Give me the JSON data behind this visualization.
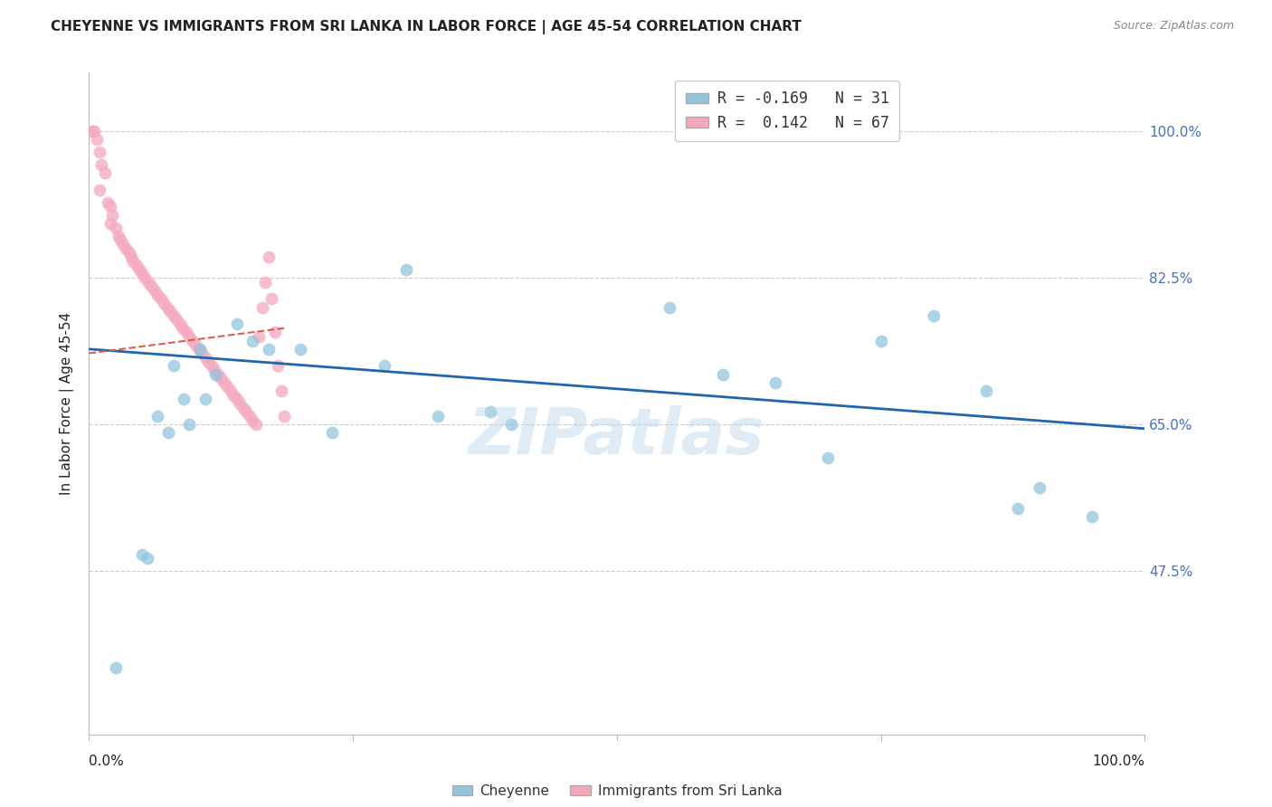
{
  "title": "CHEYENNE VS IMMIGRANTS FROM SRI LANKA IN LABOR FORCE | AGE 45-54 CORRELATION CHART",
  "source": "Source: ZipAtlas.com",
  "ylabel": "In Labor Force | Age 45-54",
  "legend_blue_R": "-0.169",
  "legend_blue_N": "31",
  "legend_pink_R": "0.142",
  "legend_pink_N": "67",
  "ytick_values": [
    47.5,
    65.0,
    82.5,
    100.0
  ],
  "xlim": [
    0,
    100
  ],
  "ylim": [
    28,
    107
  ],
  "blue_color": "#92C5DE",
  "pink_color": "#F4A9BB",
  "blue_line_color": "#2166AC",
  "pink_line_color": "#D6604D",
  "grid_color": "#CCCCCC",
  "watermark": "ZIPatlas",
  "blue_scatter_x": [
    2.5,
    5.5,
    6.5,
    8.0,
    9.0,
    10.5,
    12.0,
    14.0,
    15.5,
    17.0,
    20.0,
    23.0,
    28.0,
    33.0,
    38.0,
    40.0,
    55.0,
    60.0,
    65.0,
    70.0,
    75.0,
    80.0,
    85.0,
    88.0,
    90.0,
    95.0,
    5.0,
    7.5,
    9.5,
    11.0,
    30.0
  ],
  "blue_scatter_y": [
    36.0,
    49.0,
    66.0,
    72.0,
    68.0,
    74.0,
    71.0,
    77.0,
    75.0,
    74.0,
    74.0,
    64.0,
    72.0,
    66.0,
    66.5,
    65.0,
    79.0,
    71.0,
    70.0,
    61.0,
    75.0,
    78.0,
    69.0,
    55.0,
    57.5,
    54.0,
    49.5,
    64.0,
    65.0,
    68.0,
    83.5
  ],
  "pink_scatter_x": [
    0.3,
    0.5,
    0.7,
    1.0,
    1.2,
    1.5,
    1.8,
    2.0,
    2.2,
    2.5,
    2.8,
    3.0,
    3.2,
    3.5,
    3.8,
    4.0,
    4.2,
    4.5,
    4.8,
    5.0,
    5.3,
    5.6,
    5.9,
    6.2,
    6.5,
    6.8,
    7.1,
    7.4,
    7.7,
    8.0,
    8.3,
    8.6,
    8.9,
    9.2,
    9.5,
    9.8,
    10.1,
    10.4,
    10.7,
    11.0,
    11.3,
    11.6,
    11.9,
    12.2,
    12.5,
    12.8,
    13.1,
    13.4,
    13.7,
    14.0,
    14.3,
    14.6,
    14.9,
    15.2,
    15.5,
    15.8,
    16.1,
    16.4,
    16.7,
    17.0,
    17.3,
    17.6,
    17.9,
    18.2,
    18.5,
    1.0,
    2.0
  ],
  "pink_scatter_y": [
    100.0,
    100.0,
    99.0,
    97.5,
    96.0,
    95.0,
    91.5,
    91.0,
    90.0,
    88.5,
    87.5,
    87.0,
    86.5,
    86.0,
    85.5,
    85.0,
    84.5,
    84.0,
    83.5,
    83.0,
    82.5,
    82.0,
    81.5,
    81.0,
    80.5,
    80.0,
    79.5,
    79.0,
    78.5,
    78.0,
    77.5,
    77.0,
    76.5,
    76.0,
    75.5,
    75.0,
    74.5,
    74.0,
    73.5,
    73.0,
    72.5,
    72.0,
    71.5,
    71.0,
    70.5,
    70.0,
    69.5,
    69.0,
    68.5,
    68.0,
    67.5,
    67.0,
    66.5,
    66.0,
    65.5,
    65.0,
    75.5,
    79.0,
    82.0,
    85.0,
    80.0,
    76.0,
    72.0,
    69.0,
    66.0,
    93.0,
    89.0
  ],
  "blue_trend_x": [
    0,
    100
  ],
  "blue_trend_y": [
    74.0,
    64.5
  ],
  "pink_trend_x": [
    0,
    18.5
  ],
  "pink_trend_y": [
    73.5,
    76.5
  ]
}
